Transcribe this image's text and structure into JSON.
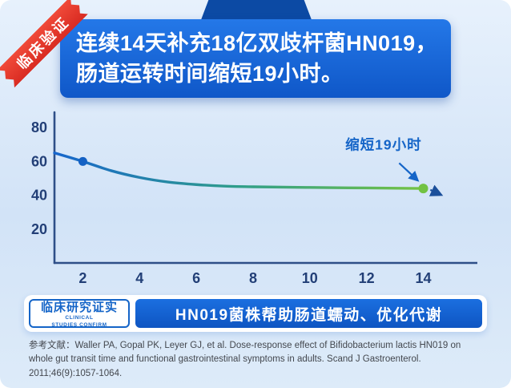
{
  "corner_badge": {
    "label": "临床验证"
  },
  "banner": {
    "title_line1": "连续14天补充18亿双歧杆菌HN019，",
    "title_line2": "肠道运转时间缩短19小时。"
  },
  "chart_data": {
    "type": "line",
    "x": [
      1,
      2,
      3,
      4,
      5,
      6,
      7,
      8,
      10,
      12,
      14
    ],
    "values": [
      65,
      60,
      54.5,
      50.5,
      47.8,
      46.3,
      45.4,
      45,
      44.6,
      44.3,
      44
    ],
    "xticks": [
      2,
      4,
      6,
      8,
      10,
      12,
      14
    ],
    "yticks": [
      20,
      40,
      60,
      80
    ],
    "xlim": [
      1,
      15.2
    ],
    "ylim": [
      0,
      90
    ],
    "grid": false,
    "start_point": [
      2,
      60
    ],
    "end_point": [
      14,
      44
    ],
    "annotation": "缩短19小时",
    "annotation_pos": [
      12.6,
      67
    ],
    "annotation_arrow": {
      "from": [
        13.15,
        59
      ],
      "to": [
        13.8,
        48.8
      ]
    },
    "end_arrow": {
      "from": [
        14.25,
        43.2
      ],
      "to": [
        14.62,
        40.3
      ]
    },
    "line_gradient": [
      "#1766cc",
      "#2f9e8a",
      "#74c343"
    ]
  },
  "footer_banner": {
    "left_title": "临床研究证实",
    "left_subtitle_line1": "CLINICAL",
    "left_subtitle_line2": "STUDIES CONFIRM",
    "right_text": "HN019菌株帮助肠道蠕动、优化代谢"
  },
  "reference": {
    "label": "参考文献：",
    "text": "Waller PA, Gopal PK, Leyer GJ, et al. Dose-response effect of Bifidobacterium lactis HN019 on whole gut transit time and functional gastrointestinal symptoms in adults. Scand J Gastroenterol. 2011;46(9):1057-1064."
  },
  "colors": {
    "banner_blue": "#1565d0",
    "ribbon_red": "#e8372d",
    "line_blue": "#1766cc",
    "line_green": "#74c343",
    "annotation_blue": "#1565c8"
  }
}
